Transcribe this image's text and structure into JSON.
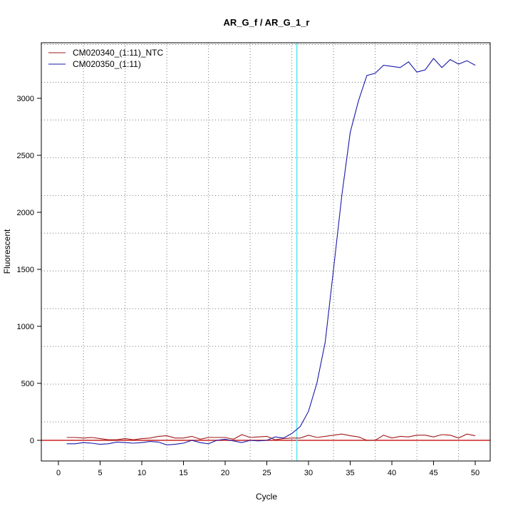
{
  "chart_data": {
    "type": "line",
    "title": "AR_G_f / AR_G_1_r",
    "xlabel": "Cycle",
    "ylabel": "Fluorescent",
    "xlim": [
      -2,
      52
    ],
    "ylim": [
      -180,
      3490
    ],
    "xticks": [
      0,
      5,
      10,
      15,
      20,
      25,
      30,
      35,
      40,
      45,
      50
    ],
    "yticks": [
      0,
      500,
      1000,
      1500,
      2000,
      2500,
      3000
    ],
    "grid": true,
    "grid_x": [
      3,
      8,
      13,
      18,
      23,
      28,
      33,
      38,
      43,
      48
    ],
    "grid_y": [
      162,
      493,
      824,
      1155,
      1486,
      1817,
      2148,
      2479,
      2810,
      3141,
      3472
    ],
    "threshold_cycle": 28.6,
    "baseline": 0,
    "legend_position": "top-left",
    "x": [
      1,
      2,
      3,
      4,
      5,
      6,
      7,
      8,
      9,
      10,
      11,
      12,
      13,
      14,
      15,
      16,
      17,
      18,
      19,
      20,
      21,
      22,
      23,
      24,
      25,
      26,
      27,
      28,
      29,
      30,
      31,
      32,
      33,
      34,
      35,
      36,
      37,
      38,
      39,
      40,
      41,
      42,
      43,
      44,
      45,
      46,
      47,
      48,
      49,
      50
    ],
    "series": [
      {
        "name": "CM020340_(1:11)_NTC",
        "color": "#a01818",
        "values": [
          25,
          25,
          20,
          25,
          15,
          5,
          5,
          15,
          5,
          15,
          20,
          35,
          40,
          20,
          20,
          35,
          10,
          25,
          25,
          25,
          10,
          50,
          25,
          30,
          35,
          5,
          15,
          20,
          20,
          45,
          25,
          35,
          45,
          55,
          40,
          30,
          0,
          0,
          45,
          20,
          35,
          30,
          45,
          45,
          30,
          50,
          45,
          20,
          55,
          40
        ]
      },
      {
        "name": "CM020350_(1:11)",
        "color": "#1a1aa8",
        "values": [
          -30,
          -30,
          -20,
          -25,
          -35,
          -30,
          -15,
          -20,
          -25,
          -20,
          -10,
          -15,
          -40,
          -35,
          -25,
          0,
          -20,
          -30,
          0,
          10,
          -5,
          -20,
          0,
          -5,
          0,
          30,
          20,
          60,
          120,
          255,
          500,
          860,
          1500,
          2150,
          2700,
          2980,
          3200,
          3220,
          3290,
          3280,
          3270,
          3320,
          3230,
          3250,
          3350,
          3270,
          3340,
          3300,
          3330,
          3290
        ]
      }
    ]
  }
}
